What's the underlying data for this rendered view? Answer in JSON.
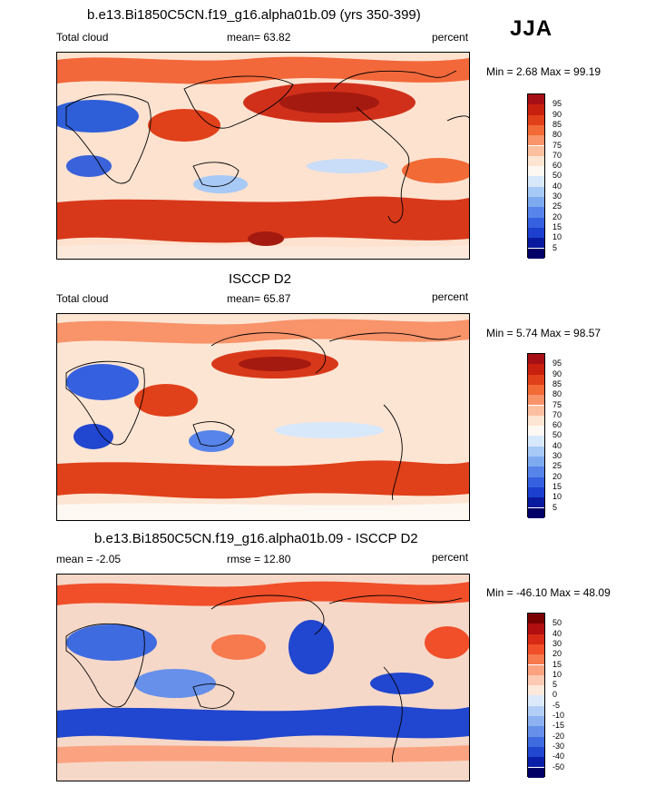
{
  "season": "JJA",
  "chart_data": [
    {
      "type": "heatmap",
      "title": "b.e13.Bi1850C5CN.f19_g16.alpha01b.09 (yrs 350-399)",
      "left_label": "Total cloud",
      "mean_label": "mean=  63.82",
      "units": "percent",
      "minmax": "Min =   2.68 Max =  99.19",
      "levels": [
        "95",
        "90",
        "85",
        "80",
        "75",
        "70",
        "60",
        "50",
        "40",
        "30",
        "25",
        "20",
        "15",
        "10",
        "5"
      ],
      "colors": [
        "#a50f15",
        "#c8200e",
        "#e0401a",
        "#f26a36",
        "#f8936a",
        "#fcbfa0",
        "#fde5d3",
        "#fdf8f2",
        "#d8e8fb",
        "#a7c9f5",
        "#7eaaf0",
        "#5784ea",
        "#3560df",
        "#1c3fcf",
        "#0a1a9e",
        "#000066"
      ]
    },
    {
      "type": "heatmap",
      "title": "ISCCP D2",
      "left_label": "Total cloud",
      "mean_label": "mean=  65.87",
      "units": "percent",
      "minmax": "Min =   5.74 Max =  98.57",
      "levels": [
        "95",
        "90",
        "85",
        "80",
        "75",
        "70",
        "60",
        "50",
        "40",
        "30",
        "25",
        "20",
        "15",
        "10",
        "5"
      ],
      "colors": [
        "#a50f15",
        "#c8200e",
        "#e0401a",
        "#f26a36",
        "#f8936a",
        "#fcbfa0",
        "#fde5d3",
        "#fdf8f2",
        "#d8e8fb",
        "#a7c9f5",
        "#7eaaf0",
        "#5784ea",
        "#3560df",
        "#1c3fcf",
        "#0a1a9e",
        "#000066"
      ]
    },
    {
      "type": "heatmap",
      "title": "b.e13.Bi1850C5CN.f19_g16.alpha01b.09 - ISCCP D2",
      "left_label": "mean =  -2.05",
      "mean_label": "rmse =  12.80",
      "units": "percent",
      "minmax": "Min = -46.10 Max =  48.09",
      "levels": [
        "50",
        "40",
        "30",
        "20",
        "15",
        "10",
        "5",
        "0",
        "-5",
        "-10",
        "-15",
        "-20",
        "-30",
        "-40",
        "-50"
      ],
      "colors": [
        "#7a0000",
        "#b10f0f",
        "#d82a14",
        "#f04f2a",
        "#f7794e",
        "#fba381",
        "#fccab3",
        "#fde9dc",
        "#dbe9fb",
        "#b3cef6",
        "#8db1f1",
        "#6690ea",
        "#3f6be0",
        "#2146cf",
        "#0a1fa8",
        "#000066"
      ]
    }
  ]
}
